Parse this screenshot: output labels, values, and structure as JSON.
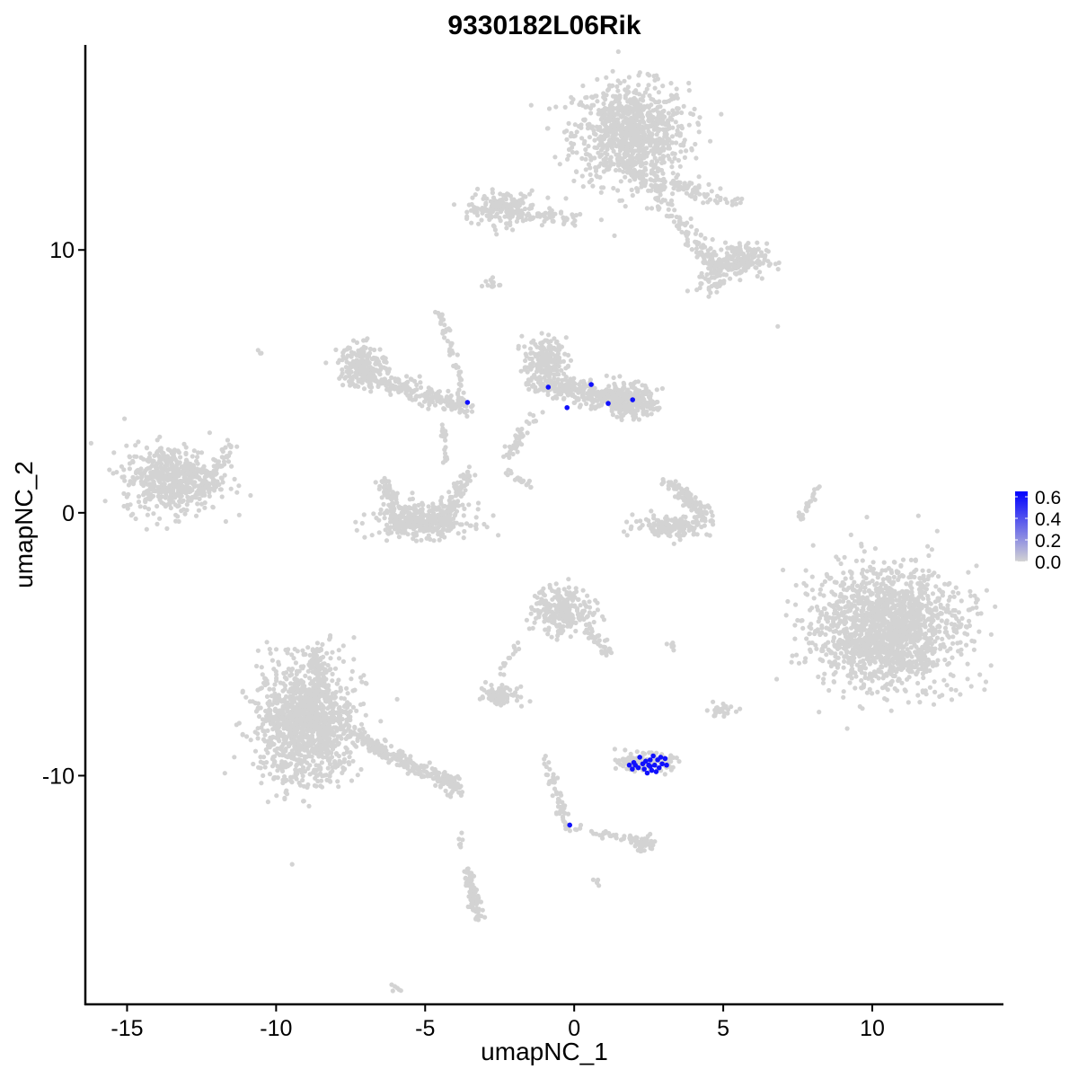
{
  "chart_data": {
    "type": "scatter",
    "title": "9330182L06Rik",
    "xlabel": "umapNC_1",
    "ylabel": "umapNC_2",
    "xlim": [
      -16.4,
      14.4
    ],
    "ylim": [
      -18.7,
      17.8
    ],
    "xticks": [
      -15,
      -10,
      -5,
      0,
      5,
      10
    ],
    "yticks": [
      -10,
      0,
      10
    ],
    "xtick_labels": [
      "-15",
      "-10",
      "-5",
      "0",
      "5",
      "10"
    ],
    "ytick_labels": [
      "-10",
      "0",
      "10"
    ],
    "grid": false,
    "color_scale": {
      "low": "#d3d3d3",
      "high": "#0000ff",
      "min": 0.0,
      "max": 0.65
    },
    "legend": {
      "position": "right",
      "ticks": [
        "0.6",
        "0.4",
        "0.2",
        "0.0"
      ],
      "values": [
        0.6,
        0.4,
        0.2,
        0.0
      ]
    },
    "background_clusters_note_free": true,
    "clusters": [
      {
        "shape": "blob",
        "center": [
          1.9,
          14.4
        ],
        "spread": [
          1.2,
          1.2
        ],
        "n": 900
      },
      {
        "shape": "blob",
        "center": [
          -2.35,
          11.6
        ],
        "spread": [
          0.7,
          0.4
        ],
        "n": 150
      },
      {
        "shape": "strand",
        "from": [
          -3.4,
          11.5
        ],
        "to": [
          0.2,
          11.2
        ],
        "width": 0.25,
        "n": 90
      },
      {
        "shape": "strand",
        "from": [
          1.9,
          13.2
        ],
        "to": [
          4.9,
          9.2
        ],
        "width": 0.35,
        "n": 160
      },
      {
        "shape": "strand",
        "from": [
          3.0,
          12.5
        ],
        "to": [
          5.6,
          11.8
        ],
        "width": 0.3,
        "n": 70
      },
      {
        "shape": "blob",
        "center": [
          5.5,
          9.6
        ],
        "spread": [
          0.6,
          0.4
        ],
        "n": 180
      },
      {
        "shape": "blob",
        "center": [
          4.6,
          8.8
        ],
        "spread": [
          0.3,
          0.3
        ],
        "n": 40
      },
      {
        "shape": "blob",
        "center": [
          -2.8,
          8.7
        ],
        "spread": [
          0.2,
          0.15
        ],
        "n": 12
      },
      {
        "shape": "blob",
        "center": [
          -13.5,
          1.3
        ],
        "spread": [
          1.0,
          0.8
        ],
        "n": 550
      },
      {
        "shape": "strand",
        "from": [
          -12.4,
          0.9
        ],
        "to": [
          -11.5,
          2.7
        ],
        "width": 0.25,
        "n": 50
      },
      {
        "shape": "blob",
        "center": [
          -7.1,
          5.6
        ],
        "spread": [
          0.5,
          0.5
        ],
        "n": 200
      },
      {
        "shape": "strand",
        "from": [
          -7.1,
          5.2
        ],
        "to": [
          -3.5,
          4.0
        ],
        "width": 0.35,
        "n": 220
      },
      {
        "shape": "strand",
        "from": [
          -4.5,
          7.6
        ],
        "to": [
          -3.6,
          4.2
        ],
        "width": 0.15,
        "n": 50
      },
      {
        "shape": "strand",
        "from": [
          -4.4,
          3.5
        ],
        "to": [
          -4.3,
          1.8
        ],
        "width": 0.15,
        "n": 20
      },
      {
        "shape": "blob",
        "center": [
          -5.1,
          -0.3
        ],
        "spread": [
          1.0,
          0.4
        ],
        "n": 350
      },
      {
        "shape": "strand",
        "from": [
          -6.4,
          1.2
        ],
        "to": [
          -5.8,
          -0.6
        ],
        "width": 0.25,
        "n": 80
      },
      {
        "shape": "strand",
        "from": [
          -4.3,
          -0.5
        ],
        "to": [
          -3.6,
          1.6
        ],
        "width": 0.25,
        "n": 90
      },
      {
        "shape": "blob",
        "center": [
          -1.0,
          5.8
        ],
        "spread": [
          0.45,
          0.5
        ],
        "n": 180
      },
      {
        "shape": "strand",
        "from": [
          -1.3,
          5.0
        ],
        "to": [
          2.6,
          4.0
        ],
        "width": 0.45,
        "n": 350
      },
      {
        "shape": "blob",
        "center": [
          1.8,
          4.3
        ],
        "spread": [
          0.6,
          0.4
        ],
        "n": 150
      },
      {
        "shape": "strand",
        "from": [
          -1.3,
          3.9
        ],
        "to": [
          -2.3,
          2.0
        ],
        "width": 0.2,
        "n": 40
      },
      {
        "shape": "strand",
        "from": [
          -2.3,
          1.6
        ],
        "to": [
          -1.2,
          0.8
        ],
        "width": 0.1,
        "n": 20
      },
      {
        "shape": "blob",
        "center": [
          3.3,
          -0.5
        ],
        "spread": [
          0.8,
          0.25
        ],
        "n": 160
      },
      {
        "shape": "strand",
        "from": [
          3.1,
          1.3
        ],
        "to": [
          4.5,
          -0.2
        ],
        "width": 0.3,
        "n": 110
      },
      {
        "shape": "strand",
        "from": [
          7.6,
          -0.2
        ],
        "to": [
          8.2,
          1.0
        ],
        "width": 0.1,
        "n": 25
      },
      {
        "shape": "blob",
        "center": [
          10.5,
          -4.4
        ],
        "spread": [
          1.5,
          1.4
        ],
        "n": 1600
      },
      {
        "shape": "blob",
        "center": [
          -0.4,
          -3.7
        ],
        "spread": [
          0.6,
          0.55
        ],
        "n": 260
      },
      {
        "shape": "strand",
        "from": [
          0.3,
          -4.2
        ],
        "to": [
          1.2,
          -5.4
        ],
        "width": 0.2,
        "n": 40
      },
      {
        "shape": "blob",
        "center": [
          -9.0,
          -8.0
        ],
        "spread": [
          1.0,
          1.4
        ],
        "n": 1200
      },
      {
        "shape": "strand",
        "from": [
          -8.7,
          -5.2
        ],
        "to": [
          -8.4,
          -6.8
        ],
        "width": 0.3,
        "n": 80
      },
      {
        "shape": "strand",
        "from": [
          -7.4,
          -8.5
        ],
        "to": [
          -3.8,
          -10.5
        ],
        "width": 0.35,
        "n": 260
      },
      {
        "shape": "blob",
        "center": [
          -2.4,
          -6.9
        ],
        "spread": [
          0.4,
          0.25
        ],
        "n": 80
      },
      {
        "shape": "strand",
        "from": [
          -2.5,
          -6.2
        ],
        "to": [
          -1.6,
          -4.4
        ],
        "width": 0.1,
        "n": 15
      },
      {
        "shape": "blob",
        "center": [
          2.4,
          -9.5
        ],
        "spread": [
          0.55,
          0.2
        ],
        "n": 140
      },
      {
        "shape": "strand",
        "from": [
          -1.0,
          -9.2
        ],
        "to": [
          -0.3,
          -11.8
        ],
        "width": 0.15,
        "n": 50
      },
      {
        "shape": "strand",
        "from": [
          -0.3,
          -11.9
        ],
        "to": [
          2.4,
          -12.6
        ],
        "width": 0.15,
        "n": 40
      },
      {
        "shape": "blob",
        "center": [
          2.3,
          -12.6
        ],
        "spread": [
          0.3,
          0.2
        ],
        "n": 40
      },
      {
        "shape": "strand",
        "from": [
          -3.6,
          -13.6
        ],
        "to": [
          -3.2,
          -15.5
        ],
        "width": 0.2,
        "n": 90
      },
      {
        "shape": "blob",
        "center": [
          4.9,
          -7.5
        ],
        "spread": [
          0.3,
          0.15
        ],
        "n": 30
      },
      {
        "shape": "blob",
        "center": [
          3.3,
          -5.1
        ],
        "spread": [
          0.1,
          0.1
        ],
        "n": 6
      },
      {
        "shape": "blob",
        "center": [
          -6.0,
          -18.1
        ],
        "spread": [
          0.15,
          0.1
        ],
        "n": 6
      },
      {
        "shape": "blob",
        "center": [
          -3.8,
          -12.5
        ],
        "spread": [
          0.05,
          0.3
        ],
        "n": 6
      },
      {
        "shape": "blob",
        "center": [
          0.7,
          -14.0
        ],
        "spread": [
          0.1,
          0.1
        ],
        "n": 4
      },
      {
        "shape": "blob",
        "center": [
          -10.5,
          6.1
        ],
        "spread": [
          0.1,
          0.1
        ],
        "n": 3
      },
      {
        "shape": "blob",
        "center": [
          6.8,
          7.1
        ],
        "spread": [
          0.05,
          0.05
        ],
        "n": 1
      }
    ],
    "expressing_cells": [
      {
        "x": -3.58,
        "y": 4.2,
        "value": 0.6
      },
      {
        "x": -0.87,
        "y": 4.78,
        "value": 0.6
      },
      {
        "x": 0.57,
        "y": 4.88,
        "value": 0.6
      },
      {
        "x": -0.24,
        "y": 4.0,
        "value": 0.6
      },
      {
        "x": 1.14,
        "y": 4.16,
        "value": 0.6
      },
      {
        "x": 1.96,
        "y": 4.3,
        "value": 0.6
      },
      {
        "x": -0.15,
        "y": -11.88,
        "value": 0.6
      },
      {
        "x": 1.85,
        "y": -9.6,
        "value": 0.6
      },
      {
        "x": 1.95,
        "y": -9.75,
        "value": 0.6
      },
      {
        "x": 2.05,
        "y": -9.6,
        "value": 0.6
      },
      {
        "x": 2.15,
        "y": -9.7,
        "value": 0.6
      },
      {
        "x": 2.2,
        "y": -9.3,
        "value": 0.6
      },
      {
        "x": 2.3,
        "y": -9.55,
        "value": 0.6
      },
      {
        "x": 2.35,
        "y": -9.75,
        "value": 0.6
      },
      {
        "x": 2.45,
        "y": -9.9,
        "value": 0.6
      },
      {
        "x": 2.5,
        "y": -9.6,
        "value": 0.6
      },
      {
        "x": 2.55,
        "y": -9.4,
        "value": 0.6
      },
      {
        "x": 2.6,
        "y": -9.8,
        "value": 0.6
      },
      {
        "x": 2.65,
        "y": -9.25,
        "value": 0.6
      },
      {
        "x": 2.7,
        "y": -9.6,
        "value": 0.6
      },
      {
        "x": 2.75,
        "y": -9.85,
        "value": 0.6
      },
      {
        "x": 2.8,
        "y": -9.4,
        "value": 0.6
      },
      {
        "x": 2.85,
        "y": -9.7,
        "value": 0.6
      },
      {
        "x": 2.9,
        "y": -9.3,
        "value": 0.6
      },
      {
        "x": 2.95,
        "y": -9.55,
        "value": 0.6
      },
      {
        "x": 3.05,
        "y": -9.35,
        "value": 0.6
      },
      {
        "x": 3.1,
        "y": -9.6,
        "value": 0.6
      },
      {
        "x": 2.4,
        "y": -9.45,
        "value": 0.6
      },
      {
        "x": 2.0,
        "y": -9.5,
        "value": 0.6
      },
      {
        "x": 2.55,
        "y": -9.65,
        "value": 0.6
      }
    ]
  }
}
